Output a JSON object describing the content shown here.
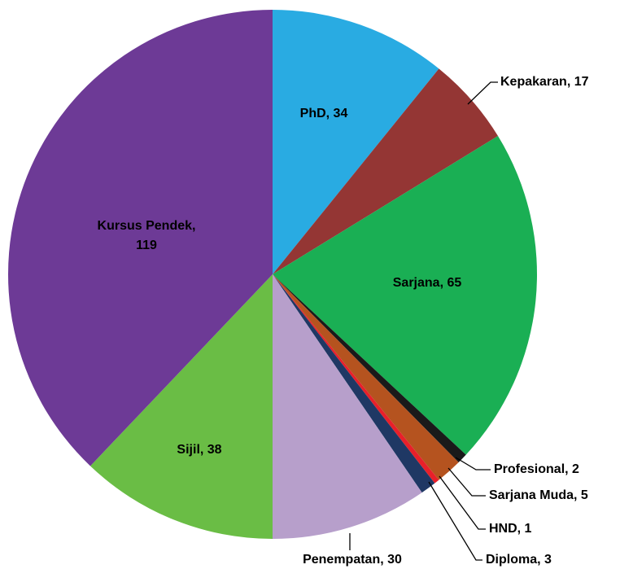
{
  "chart_data": {
    "type": "pie",
    "values": [
      34,
      17,
      65,
      2,
      5,
      1,
      3,
      30,
      38,
      119
    ],
    "value_labels": [
      "PhD, 34",
      "Kepakaran, 17",
      "Sarjana, 65",
      "Profesional, 2",
      "Sarjana Muda, 5",
      "HND, 1",
      "Diploma, 3",
      "Penempatan, 30",
      "Sijil, 38",
      "Kursus Pendek,\n119"
    ],
    "colors": [
      "#29abe2",
      "#943634",
      "#1aaf54",
      "#1a1a1a",
      "#b5531f",
      "#e8202a",
      "#1f3864",
      "#b79fcb",
      "#6abd45",
      "#6d3a96"
    ]
  }
}
